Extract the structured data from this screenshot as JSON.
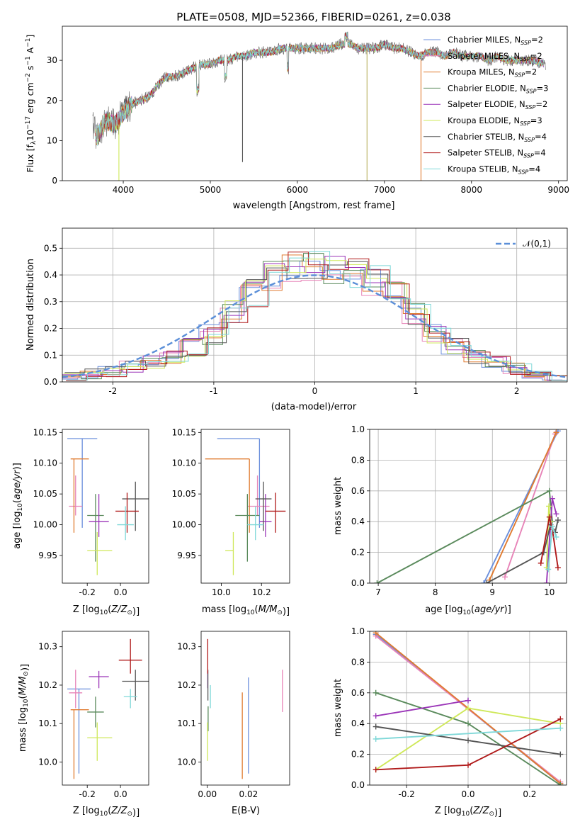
{
  "figure_title": "PLATE=0508, MJD=52366, FIBERID=0261, z=0.038",
  "colors": {
    "Chabrier MILES": "#6b8fdc",
    "Salpeter MILES": "#e784b8",
    "Kroupa MILES": "#e07b30",
    "Chabrier ELODIE": "#5a8a5c",
    "Salpeter ELODIE": "#9b35b8",
    "Kroupa ELODIE": "#cfe85a",
    "Chabrier STELIB": "#555555",
    "Salpeter STELIB": "#b01a1a",
    "Kroupa STELIB": "#7fd8d8",
    "normal": "#5b8fd8"
  },
  "chart_data": [
    {
      "id": "spectrum",
      "type": "line",
      "xlabel": "wavelength [Angstrom, rest frame]",
      "ylabel": "Flux [f_λ 10^-17 erg cm^-2 s^-1 A^-1]",
      "xlim": [
        3300,
        9100
      ],
      "ylim": [
        0,
        38.5
      ],
      "xticks": [
        4000,
        5000,
        6000,
        7000,
        8000,
        9000
      ],
      "yticks": [
        0,
        10,
        20,
        30
      ],
      "grid": false,
      "legend_position": "right",
      "x": [
        3650,
        3700,
        3800,
        3900,
        3950,
        4000,
        4100,
        4200,
        4300,
        4400,
        4500,
        4600,
        4700,
        4800,
        4900,
        5000,
        5100,
        5200,
        5300,
        5400,
        5500,
        5600,
        5700,
        5800,
        5900,
        6000,
        6100,
        6200,
        6300,
        6400,
        6500,
        6600,
        6700,
        6800,
        6900,
        7000,
        7100,
        7200,
        7300,
        7400,
        7500,
        7600,
        7700,
        7800,
        7900,
        8000,
        8100,
        8200,
        8300,
        8400,
        8500,
        8600,
        8700,
        8850
      ],
      "y": [
        14,
        11,
        15,
        14,
        15,
        17,
        19,
        20,
        21,
        24,
        26,
        26,
        27,
        28,
        29,
        29,
        30,
        30,
        31,
        31,
        32,
        32,
        32,
        33,
        33,
        33,
        33,
        33,
        33,
        33,
        34,
        34,
        33,
        33,
        33,
        34,
        33,
        33,
        32,
        31,
        32,
        32,
        31,
        32,
        31,
        31,
        31,
        30,
        31,
        30,
        30,
        30,
        30,
        29
      ],
      "series": [
        {
          "name": "Chabrier MILES, N_SSP=2",
          "label_main": "Chabrier MILES, N",
          "label_sub": "SSP",
          "label_tail": "=2"
        },
        {
          "name": "Salpeter MILES, N_SSP=2",
          "label_main": "Salpeter MILES, N",
          "label_sub": "SSP",
          "label_tail": "=2"
        },
        {
          "name": "Kroupa MILES, N_SSP=2",
          "label_main": "Kroupa MILES, N",
          "label_sub": "SSP",
          "label_tail": "=2"
        },
        {
          "name": "Chabrier ELODIE, N_SSP=3",
          "label_main": "Chabrier ELODIE, N",
          "label_sub": "SSP",
          "label_tail": "=3"
        },
        {
          "name": "Salpeter ELODIE, N_SSP=2",
          "label_main": "Salpeter ELODIE, N",
          "label_sub": "SSP",
          "label_tail": "=2"
        },
        {
          "name": "Kroupa ELODIE, N_SSP=3",
          "label_main": "Kroupa ELODIE, N",
          "label_sub": "SSP",
          "label_tail": "=3"
        },
        {
          "name": "Chabrier STELIB, N_SSP=4",
          "label_main": "Chabrier STELIB, N",
          "label_sub": "SSP",
          "label_tail": "=4"
        },
        {
          "name": "Salpeter STELIB, N_SSP=4",
          "label_main": "Salpeter STELIB, N",
          "label_sub": "SSP",
          "label_tail": "=4"
        },
        {
          "name": "Kroupa STELIB, N_SSP=4",
          "label_main": "Kroupa STELIB, N",
          "label_sub": "SSP",
          "label_tail": "=4"
        }
      ]
    },
    {
      "id": "residuals",
      "type": "line",
      "xlabel": "(data-model)/error",
      "ylabel": "Normed distribution",
      "xlim": [
        -2.5,
        2.5
      ],
      "ylim": [
        0,
        0.575
      ],
      "xticks": [
        -2,
        -1,
        0,
        1,
        2
      ],
      "yticks": [
        0.0,
        0.1,
        0.2,
        0.3,
        0.4,
        0.5
      ],
      "grid": true,
      "legend": "𝒩(0,1)",
      "legend_position": "top-right",
      "bin_edges": [
        -2.5,
        -2.3,
        -2.1,
        -1.9,
        -1.7,
        -1.5,
        -1.3,
        -1.1,
        -0.9,
        -0.7,
        -0.5,
        -0.3,
        -0.1,
        0.1,
        0.3,
        0.5,
        0.7,
        0.9,
        1.1,
        1.3,
        1.5,
        1.7,
        1.9,
        2.1,
        2.3,
        2.5
      ],
      "histogram_mean": [
        0.02,
        0.03,
        0.04,
        0.06,
        0.07,
        0.09,
        0.13,
        0.18,
        0.26,
        0.33,
        0.4,
        0.43,
        0.44,
        0.42,
        0.41,
        0.38,
        0.34,
        0.26,
        0.18,
        0.13,
        0.09,
        0.07,
        0.05,
        0.03,
        0.02
      ],
      "normal_curve": "N(0,1) pdf"
    },
    {
      "id": "age_vs_Z",
      "type": "scatter",
      "xlabel": "Z [log10(Z/Z⊙)]",
      "ylabel": "age [log10(age/yr)]",
      "xlim": [
        -0.35,
        0.17
      ],
      "ylim": [
        9.905,
        10.155
      ],
      "xticks": [
        -0.2,
        0.0
      ],
      "yticks": [
        9.95,
        10.0,
        10.05,
        10.1,
        10.15
      ],
      "grid": false,
      "points": [
        {
          "s": "Chabrier MILES",
          "x": -0.23,
          "xerr": [
            0.09,
            0.09
          ],
          "y": 10.14,
          "yerr": [
            0.145,
            0.0
          ]
        },
        {
          "s": "Salpeter MILES",
          "x": -0.27,
          "xerr": [
            0.04,
            0.04
          ],
          "y": 10.03,
          "yerr": [
            0.015,
            0.05
          ]
        },
        {
          "s": "Kroupa MILES",
          "x": -0.28,
          "xerr": [
            0.02,
            0.09
          ],
          "y": 10.107,
          "yerr": [
            0.12,
            0.0
          ]
        },
        {
          "s": "Chabrier ELODIE",
          "x": -0.15,
          "xerr": [
            0.05,
            0.05
          ],
          "y": 10.015,
          "yerr": [
            0.075,
            0.035
          ]
        },
        {
          "s": "Salpeter ELODIE",
          "x": -0.13,
          "xerr": [
            0.06,
            0.06
          ],
          "y": 10.005,
          "yerr": [
            0.025,
            0.045
          ]
        },
        {
          "s": "Kroupa ELODIE",
          "x": -0.14,
          "xerr": [
            0.06,
            0.09
          ],
          "y": 9.958,
          "yerr": [
            0.04,
            0.03
          ]
        },
        {
          "s": "Chabrier STELIB",
          "x": 0.09,
          "xerr": [
            0.08,
            0.08
          ],
          "y": 10.042,
          "yerr": [
            0.052,
            0.028
          ]
        },
        {
          "s": "Salpeter STELIB",
          "x": 0.04,
          "xerr": [
            0.07,
            0.07
          ],
          "y": 10.022,
          "yerr": [
            0.035,
            0.03
          ]
        },
        {
          "s": "Kroupa STELIB",
          "x": 0.03,
          "xerr": [
            0.05,
            0.05
          ],
          "y": 10.0,
          "yerr": [
            0.025,
            0.03
          ]
        }
      ]
    },
    {
      "id": "age_vs_mass",
      "type": "scatter",
      "xlabel": "mass [log10(M/M⊙)]",
      "ylabel": "",
      "xlim": [
        9.9,
        10.34
      ],
      "ylim": [
        9.905,
        10.155
      ],
      "xticks": [
        10.0,
        10.2
      ],
      "yticks": [
        9.95,
        10.0,
        10.05,
        10.1,
        10.15
      ],
      "grid": false,
      "points": [
        {
          "s": "Chabrier MILES",
          "x": 10.19,
          "xerr": [
            0.21,
            0.0
          ],
          "y": 10.14,
          "yerr": [
            0.145,
            0.0
          ]
        },
        {
          "s": "Salpeter MILES",
          "x": 10.18,
          "xerr": [
            0.05,
            0.06
          ],
          "y": 10.03,
          "yerr": [
            0.015,
            0.05
          ]
        },
        {
          "s": "Kroupa MILES",
          "x": 10.14,
          "xerr": [
            0.22,
            0.0
          ],
          "y": 10.107,
          "yerr": [
            0.12,
            0.0
          ]
        },
        {
          "s": "Chabrier ELODIE",
          "x": 10.13,
          "xerr": [
            0.06,
            0.06
          ],
          "y": 10.015,
          "yerr": [
            0.075,
            0.035
          ]
        },
        {
          "s": "Salpeter ELODIE",
          "x": 10.22,
          "xerr": [
            0.03,
            0.03
          ],
          "y": 10.005,
          "yerr": [
            0.025,
            0.045
          ]
        },
        {
          "s": "Kroupa ELODIE",
          "x": 10.06,
          "xerr": [
            0.04,
            0.0
          ],
          "y": 9.958,
          "yerr": [
            0.04,
            0.03
          ]
        },
        {
          "s": "Chabrier STELIB",
          "x": 10.21,
          "xerr": [
            0.04,
            0.04
          ],
          "y": 10.042,
          "yerr": [
            0.052,
            0.028
          ]
        },
        {
          "s": "Salpeter STELIB",
          "x": 10.27,
          "xerr": [
            0.05,
            0.05
          ],
          "y": 10.022,
          "yerr": [
            0.035,
            0.03
          ]
        },
        {
          "s": "Kroupa STELIB",
          "x": 10.17,
          "xerr": [
            0.04,
            0.04
          ],
          "y": 10.0,
          "yerr": [
            0.025,
            0.03
          ]
        }
      ]
    },
    {
      "id": "massweight_vs_age",
      "type": "line",
      "xlabel": "age [log10(age/yr)]",
      "ylabel": "mass weight",
      "xlim": [
        6.85,
        10.3
      ],
      "ylim": [
        0,
        1.0
      ],
      "xticks": [
        7,
        8,
        9,
        10
      ],
      "yticks": [
        0.0,
        0.2,
        0.4,
        0.6,
        0.8,
        1.0
      ],
      "grid": true,
      "series": [
        {
          "s": "Chabrier MILES",
          "x": [
            8.85,
            10.15
          ],
          "y": [
            0.0,
            0.99
          ]
        },
        {
          "s": "Salpeter MILES",
          "x": [
            9.22,
            10.1
          ],
          "y": [
            0.04,
            0.97
          ]
        },
        {
          "s": "Kroupa MILES",
          "x": [
            8.95,
            10.12
          ],
          "y": [
            0.02,
            0.98
          ]
        },
        {
          "s": "Chabrier ELODIE",
          "x": [
            6.98,
            10.0,
            10.05
          ],
          "y": [
            0.0,
            0.6,
            0.4
          ]
        },
        {
          "s": "Salpeter ELODIE",
          "x": [
            9.95,
            10.05,
            10.12
          ],
          "y": [
            0.0,
            0.55,
            0.45
          ]
        },
        {
          "s": "Kroupa ELODIE",
          "x": [
            9.95,
            9.99,
            10.02
          ],
          "y": [
            0.1,
            0.5,
            0.4
          ]
        },
        {
          "s": "Chabrier STELIB",
          "x": [
            8.9,
            9.9,
            10.02,
            10.1,
            10.15
          ],
          "y": [
            0.0,
            0.2,
            0.38,
            0.33,
            0.41
          ]
        },
        {
          "s": "Salpeter STELIB",
          "x": [
            9.85,
            10.0,
            10.05,
            10.15
          ],
          "y": [
            0.13,
            0.43,
            0.35,
            0.1
          ]
        },
        {
          "s": "Kroupa STELIB",
          "x": [
            9.98,
            10.05,
            10.12
          ],
          "y": [
            0.09,
            0.37,
            0.3
          ]
        }
      ]
    },
    {
      "id": "mass_vs_Z",
      "type": "scatter",
      "xlabel": "Z [log10(Z/Z⊙)]",
      "ylabel": "mass [log10(M/M⊙)]",
      "xlim": [
        -0.35,
        0.17
      ],
      "ylim": [
        9.94,
        10.34
      ],
      "xticks": [
        -0.2,
        0.0
      ],
      "yticks": [
        10.0,
        10.1,
        10.2,
        10.3
      ],
      "grid": false,
      "points": [
        {
          "s": "Chabrier MILES",
          "x": -0.25,
          "xerr": [
            0.07,
            0.07
          ],
          "y": 10.19,
          "yerr": [
            0.22,
            0.0
          ]
        },
        {
          "s": "Salpeter MILES",
          "x": -0.27,
          "xerr": [
            0.04,
            0.04
          ],
          "y": 10.18,
          "yerr": [
            0.04,
            0.06
          ]
        },
        {
          "s": "Kroupa MILES",
          "x": -0.28,
          "xerr": [
            0.02,
            0.09
          ],
          "y": 10.136,
          "yerr": [
            0.18,
            0.0
          ]
        },
        {
          "s": "Chabrier ELODIE",
          "x": -0.15,
          "xerr": [
            0.05,
            0.05
          ],
          "y": 10.13,
          "yerr": [
            0.04,
            0.04
          ]
        },
        {
          "s": "Salpeter ELODIE",
          "x": -0.13,
          "xerr": [
            0.06,
            0.06
          ],
          "y": 10.222,
          "yerr": [
            0.03,
            0.015
          ]
        },
        {
          "s": "Kroupa ELODIE",
          "x": -0.14,
          "xerr": [
            0.06,
            0.09
          ],
          "y": 10.063,
          "yerr": [
            0.06,
            0.04
          ]
        },
        {
          "s": "Chabrier STELIB",
          "x": 0.09,
          "xerr": [
            0.08,
            0.08
          ],
          "y": 10.21,
          "yerr": [
            0.05,
            0.03
          ]
        },
        {
          "s": "Salpeter STELIB",
          "x": 0.06,
          "xerr": [
            0.07,
            0.07
          ],
          "y": 10.265,
          "yerr": [
            0.035,
            0.055
          ]
        },
        {
          "s": "Kroupa STELIB",
          "x": 0.06,
          "xerr": [
            0.04,
            0.04
          ],
          "y": 10.17,
          "yerr": [
            0.03,
            0.02
          ]
        }
      ]
    },
    {
      "id": "mass_vs_ebv",
      "type": "scatter",
      "xlabel": "E(B-V)",
      "ylabel": "",
      "xlim": [
        -0.003,
        0.04
      ],
      "ylim": [
        9.94,
        10.34
      ],
      "xticks": [
        0.0,
        0.02
      ],
      "yticks": [
        10.0,
        10.1,
        10.2,
        10.3
      ],
      "grid": false,
      "points": [
        {
          "s": "Chabrier MILES",
          "x": 0.02,
          "y": 10.19,
          "yerr": [
            0.22,
            0.03
          ]
        },
        {
          "s": "Salpeter MILES",
          "x": 0.0365,
          "y": 10.18,
          "yerr": [
            0.05,
            0.06
          ]
        },
        {
          "s": "Kroupa MILES",
          "x": 0.017,
          "y": 10.136,
          "yerr": [
            0.18,
            0.045
          ]
        },
        {
          "s": "Chabrier ELODIE",
          "x": 0.0004,
          "y": 10.13,
          "yerr": [
            0.05,
            0.015
          ]
        },
        {
          "s": "Salpeter ELODIE",
          "x": 0.0002,
          "y": 10.222,
          "yerr": [
            0.03,
            0.015
          ]
        },
        {
          "s": "Kroupa ELODIE",
          "x": 0.0001,
          "y": 10.063,
          "yerr": [
            0.06,
            0.04
          ]
        },
        {
          "s": "Chabrier STELIB",
          "x": 0.0003,
          "y": 10.21,
          "yerr": [
            0.05,
            0.03
          ]
        },
        {
          "s": "Salpeter STELIB",
          "x": 0.0002,
          "y": 10.265,
          "yerr": [
            0.035,
            0.055
          ]
        },
        {
          "s": "Kroupa STELIB",
          "x": 0.0015,
          "y": 10.17,
          "yerr": [
            0.03,
            0.03
          ]
        }
      ]
    },
    {
      "id": "massweight_vs_Z",
      "type": "line",
      "xlabel": "Z [log10(Z/Z⊙)]",
      "ylabel": "mass weight",
      "xlim": [
        -0.32,
        0.32
      ],
      "ylim": [
        0,
        1.0
      ],
      "xticks": [
        -0.2,
        0.0,
        0.2
      ],
      "yticks": [
        0.0,
        0.2,
        0.4,
        0.6,
        0.8,
        1.0
      ],
      "grid": true,
      "series": [
        {
          "s": "Chabrier MILES",
          "x": [
            -0.3,
            0.3
          ],
          "y": [
            0.98,
            0.01
          ]
        },
        {
          "s": "Salpeter MILES",
          "x": [
            -0.3,
            0.3
          ],
          "y": [
            0.97,
            0.02
          ]
        },
        {
          "s": "Kroupa MILES",
          "x": [
            -0.3,
            0.3
          ],
          "y": [
            0.99,
            0.01
          ]
        },
        {
          "s": "Chabrier ELODIE",
          "x": [
            -0.3,
            0.0,
            0.3
          ],
          "y": [
            0.6,
            0.4,
            0.0
          ]
        },
        {
          "s": "Salpeter ELODIE",
          "x": [
            -0.3,
            0.0
          ],
          "y": [
            0.45,
            0.55
          ]
        },
        {
          "s": "Kroupa ELODIE",
          "x": [
            -0.3,
            0.0,
            0.3
          ],
          "y": [
            0.1,
            0.5,
            0.4
          ]
        },
        {
          "s": "Chabrier STELIB",
          "x": [
            -0.3,
            0.0,
            0.3
          ],
          "y": [
            0.38,
            0.29,
            0.2
          ]
        },
        {
          "s": "Salpeter STELIB",
          "x": [
            -0.3,
            0.0,
            0.3
          ],
          "y": [
            0.1,
            0.13,
            0.43
          ]
        },
        {
          "s": "Kroupa STELIB",
          "x": [
            -0.3,
            0.3
          ],
          "y": [
            0.3,
            0.37
          ]
        }
      ]
    }
  ]
}
